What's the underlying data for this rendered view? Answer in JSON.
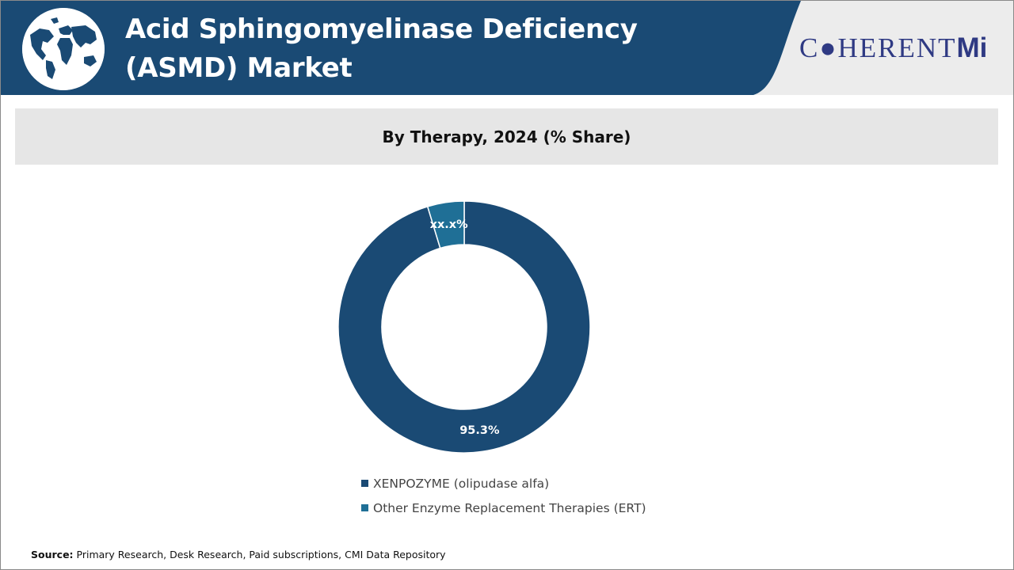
{
  "header": {
    "title": "Acid Sphingomyelinase Deficiency (ASMD) Market",
    "logo_text": "C●HERENT",
    "logo_mi": "Mi",
    "colors": {
      "banner": "#1a4a74",
      "logo_text": "#2f3a83",
      "logo_mi": "#2f3a83"
    },
    "globe_icon": "world-map-globe-icon"
  },
  "chart_data": {
    "type": "pie",
    "title": "By Therapy, 2024 (% Share)",
    "donut": true,
    "slices": [
      {
        "label": "XENPOZYME (olipudase alfa)",
        "value": 95.3,
        "display": "95.3%",
        "color": "#1a4a74"
      },
      {
        "label": "Other Enzyme Replacement Therapies (ERT)",
        "value": 4.7,
        "display": "xx.x%",
        "color": "#1f6f96"
      }
    ],
    "legend_position": "bottom"
  },
  "footer": {
    "source_label": "Source:",
    "source_text": " Primary Research, Desk Research, Paid subscriptions, CMI Data Repository"
  }
}
